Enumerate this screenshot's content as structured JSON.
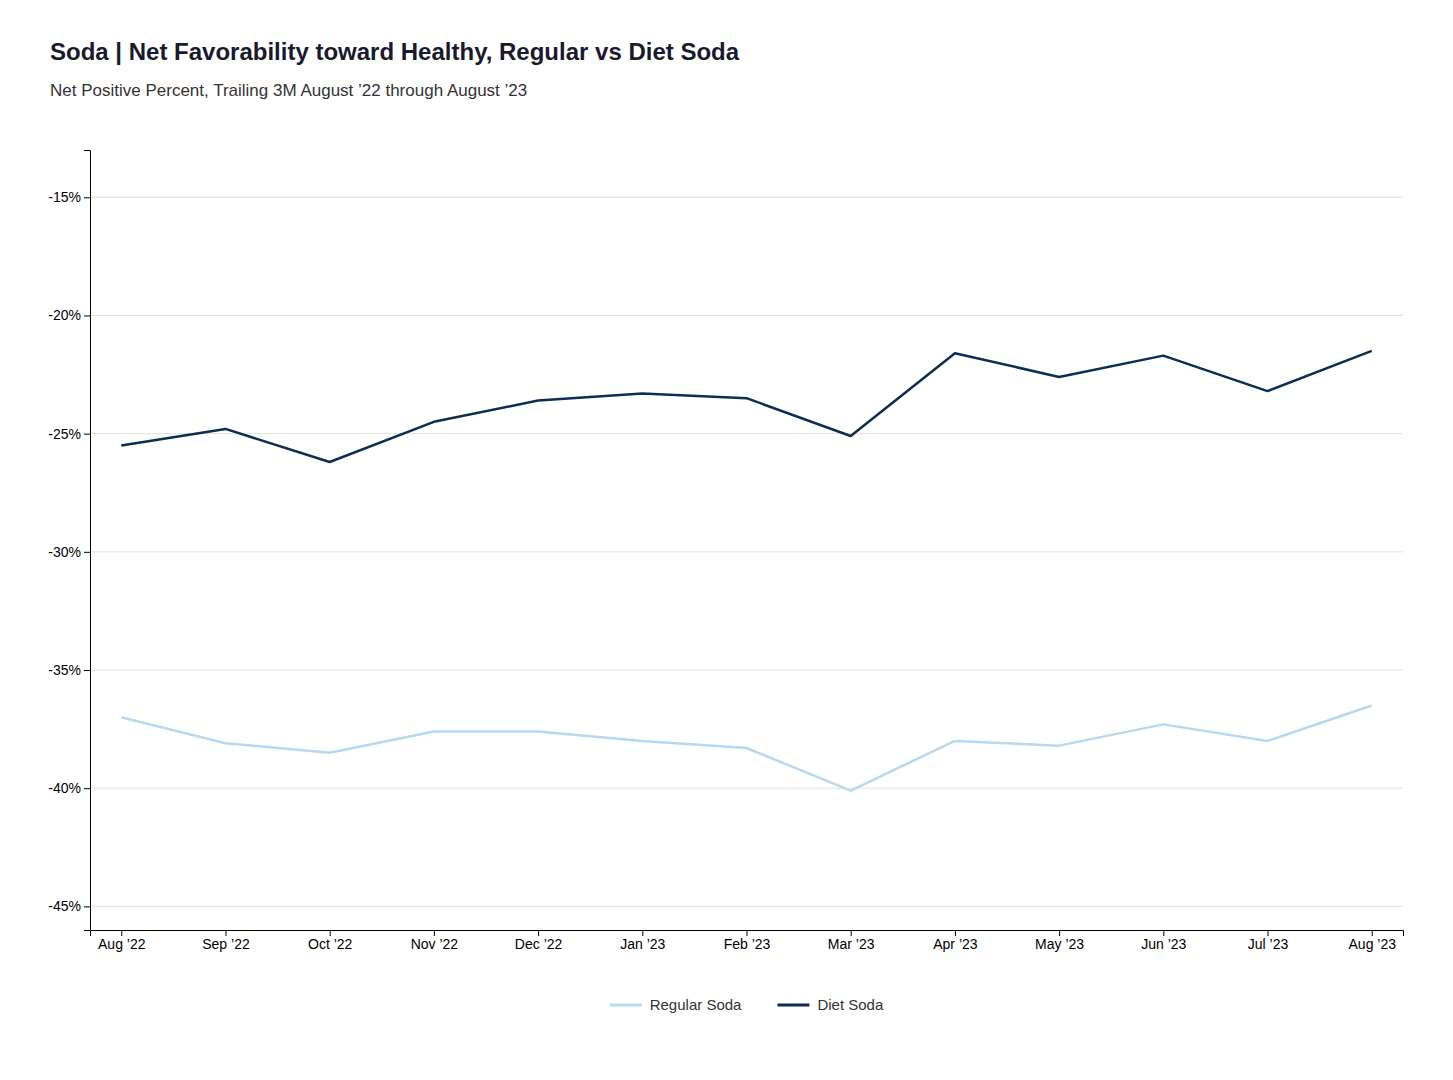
{
  "chart_data": {
    "type": "line",
    "title": "Soda | Net Favorability toward Healthy, Regular vs Diet Soda",
    "subtitle": "Net Positive Percent, Trailing 3M August ’22 through August ’23",
    "categories": [
      "Aug ’22",
      "Sep ’22",
      "Oct ’22",
      "Nov ’22",
      "Dec ’22",
      "Jan ’23",
      "Feb ’23",
      "Mar ’23",
      "Apr ’23",
      "May ’23",
      "Jun ’23",
      "Jul ’23",
      "Aug ’23"
    ],
    "series": [
      {
        "name": "Regular Soda",
        "color": "#b8d8f0",
        "values": [
          -37.0,
          -38.1,
          -38.5,
          -37.6,
          -37.6,
          -38.0,
          -38.3,
          -40.1,
          -38.0,
          -38.2,
          -37.3,
          -38.0,
          -36.5
        ]
      },
      {
        "name": "Diet Soda",
        "color": "#0d2d52",
        "values": [
          -25.5,
          -24.8,
          -26.2,
          -24.5,
          -23.6,
          -23.3,
          -23.5,
          -25.1,
          -21.6,
          -22.6,
          -21.7,
          -23.2,
          -21.5
        ]
      }
    ],
    "ylim": [
      -46,
      -13
    ],
    "yticks": [
      {
        "value": -15,
        "label": "-15%"
      },
      {
        "value": -20,
        "label": "-20%"
      },
      {
        "value": -25,
        "label": "-25%"
      },
      {
        "value": -30,
        "label": "-30%"
      },
      {
        "value": -35,
        "label": "-35%"
      },
      {
        "value": -40,
        "label": "-40%"
      },
      {
        "value": -45,
        "label": "-45%"
      }
    ],
    "grid": true,
    "legend": "bottom"
  }
}
